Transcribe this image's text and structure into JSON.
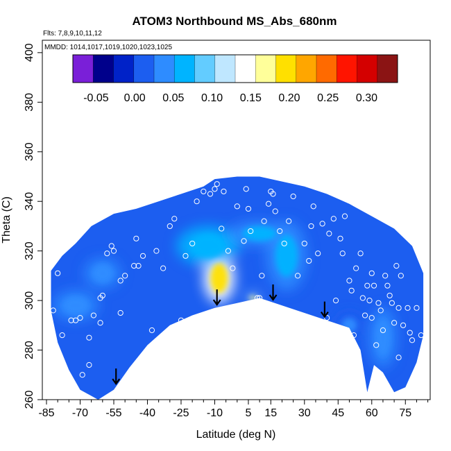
{
  "chart_data": {
    "type": "heatmap",
    "title": "ATOM3 Northbound MS_Abs_680nm",
    "flights_note": "Flts: 7,8,9,10,11,12",
    "dates_note": "MMDD: 1014,1017,1019,1020,1023,1025",
    "xlabel": "Latitude (deg N)",
    "ylabel": "Theta (C)",
    "xlim": [
      -85,
      85
    ],
    "ylim": [
      260,
      405
    ],
    "x_ticks": [
      -85,
      -70,
      -55,
      -40,
      -25,
      -10,
      5,
      15,
      30,
      45,
      60,
      75
    ],
    "y_ticks": [
      260,
      280,
      300,
      320,
      340,
      360,
      380,
      400
    ],
    "colorbar": {
      "range": [
        -0.08,
        0.34
      ],
      "ticks": [
        -0.05,
        0.0,
        0.05,
        0.1,
        0.15,
        0.2,
        0.25,
        0.3
      ],
      "tick_labels": [
        "-0.05",
        "0.00",
        "0.05",
        "0.10",
        "0.15",
        "0.20",
        "0.25",
        "0.30"
      ],
      "colors": [
        "#7a1fd8",
        "#00008b",
        "#0022c8",
        "#1c5ef0",
        "#2e8cff",
        "#00b4ff",
        "#63ccff",
        "#bfe7ff",
        "#ffffff",
        "#ffff9a",
        "#ffe000",
        "#ffa600",
        "#ff6a00",
        "#ff1400",
        "#d40000",
        "#8b1414"
      ]
    },
    "boundary": {
      "top": [
        [
          -83,
          312
        ],
        [
          -78,
          318
        ],
        [
          -72,
          323
        ],
        [
          -65,
          330
        ],
        [
          -55,
          335
        ],
        [
          -45,
          337
        ],
        [
          -35,
          340
        ],
        [
          -25,
          343
        ],
        [
          -15,
          346
        ],
        [
          -10,
          349
        ],
        [
          0,
          350
        ],
        [
          10,
          350
        ],
        [
          20,
          348
        ],
        [
          30,
          346
        ],
        [
          40,
          343
        ],
        [
          50,
          339
        ],
        [
          60,
          334
        ],
        [
          70,
          329
        ],
        [
          78,
          322
        ],
        [
          83,
          311
        ]
      ],
      "bottom": [
        [
          -83,
          296
        ],
        [
          -80,
          283
        ],
        [
          -75,
          272
        ],
        [
          -70,
          264
        ],
        [
          -62,
          260
        ],
        [
          -55,
          264
        ],
        [
          -48,
          273
        ],
        [
          -40,
          282
        ],
        [
          -30,
          290
        ],
        [
          -20,
          294
        ],
        [
          -10,
          297
        ],
        [
          0,
          299
        ],
        [
          10,
          301
        ],
        [
          20,
          298
        ],
        [
          30,
          295
        ],
        [
          40,
          292
        ],
        [
          50,
          289
        ],
        [
          55,
          280
        ],
        [
          58,
          263
        ],
        [
          61,
          274
        ],
        [
          65,
          271
        ],
        [
          70,
          263
        ],
        [
          75,
          265
        ],
        [
          80,
          275
        ],
        [
          83,
          286
        ]
      ]
    },
    "hotspots": [
      {
        "x": -8,
        "y": 309,
        "value": 0.2,
        "rx": 7,
        "ry": 10
      },
      {
        "x": 7,
        "y": 301,
        "value": 0.17,
        "rx": 3,
        "ry": 1.5
      },
      {
        "x": -13,
        "y": 322,
        "value": 0.07,
        "rx": 14,
        "ry": 8
      },
      {
        "x": 22,
        "y": 318,
        "value": 0.06,
        "rx": 9,
        "ry": 14
      },
      {
        "x": 10,
        "y": 327,
        "value": 0.06,
        "rx": 14,
        "ry": 5
      },
      {
        "x": -60,
        "y": 311,
        "value": 0.05,
        "rx": 8,
        "ry": 6
      },
      {
        "x": -72,
        "y": 298,
        "value": 0.04,
        "rx": 10,
        "ry": 6
      },
      {
        "x": 65,
        "y": 285,
        "value": 0.05,
        "rx": 6,
        "ry": 12
      },
      {
        "x": 50,
        "y": 290,
        "value": 0.03,
        "rx": 6,
        "ry": 5
      }
    ],
    "background_value": 0.0,
    "sample_points": [
      [
        -82,
        296
      ],
      [
        -80,
        311
      ],
      [
        -78,
        286
      ],
      [
        -74,
        292
      ],
      [
        -72,
        292
      ],
      [
        -70,
        293
      ],
      [
        -73,
        262
      ],
      [
        -66,
        285
      ],
      [
        -64,
        294
      ],
      [
        -61,
        291
      ],
      [
        -60,
        302
      ],
      [
        -58,
        319
      ],
      [
        -56,
        322
      ],
      [
        -55,
        320
      ],
      [
        -52,
        308
      ],
      [
        -50,
        310
      ],
      [
        -46,
        314
      ],
      [
        -45,
        325
      ],
      [
        -44,
        314
      ],
      [
        -42,
        318
      ],
      [
        -38,
        288
      ],
      [
        -36,
        320
      ],
      [
        -33,
        313
      ],
      [
        -30,
        330
      ],
      [
        -28,
        333
      ],
      [
        -25,
        292
      ],
      [
        -23,
        318
      ],
      [
        -20,
        323
      ],
      [
        -18,
        340
      ],
      [
        -15,
        344
      ],
      [
        -12,
        343
      ],
      [
        -10,
        345
      ],
      [
        -9,
        347
      ],
      [
        -7,
        329
      ],
      [
        -6,
        344
      ],
      [
        -4,
        320
      ],
      [
        -2,
        313
      ],
      [
        0,
        338
      ],
      [
        3,
        324
      ],
      [
        4,
        345
      ],
      [
        5,
        337
      ],
      [
        6,
        328
      ],
      [
        8,
        299
      ],
      [
        9,
        301
      ],
      [
        10,
        301
      ],
      [
        11,
        310
      ],
      [
        12,
        332
      ],
      [
        14,
        339
      ],
      [
        15,
        344
      ],
      [
        16,
        343
      ],
      [
        17,
        336
      ],
      [
        19,
        328
      ],
      [
        21,
        323
      ],
      [
        23,
        332
      ],
      [
        25,
        342
      ],
      [
        27,
        310
      ],
      [
        29,
        294
      ],
      [
        30,
        323
      ],
      [
        32,
        316
      ],
      [
        33,
        330
      ],
      [
        34,
        338
      ],
      [
        36,
        319
      ],
      [
        38,
        331
      ],
      [
        40,
        293
      ],
      [
        41,
        327
      ],
      [
        43,
        333
      ],
      [
        44,
        300
      ],
      [
        46,
        325
      ],
      [
        47,
        319
      ],
      [
        48,
        334
      ],
      [
        50,
        308
      ],
      [
        51,
        304
      ],
      [
        52,
        286
      ],
      [
        53,
        313
      ],
      [
        55,
        319
      ],
      [
        56,
        301
      ],
      [
        57,
        294
      ],
      [
        58,
        306
      ],
      [
        59,
        300
      ],
      [
        60,
        293
      ],
      [
        60,
        311
      ],
      [
        61,
        306
      ],
      [
        62,
        282
      ],
      [
        63,
        299
      ],
      [
        64,
        296
      ],
      [
        65,
        288
      ],
      [
        66,
        310
      ],
      [
        67,
        306
      ],
      [
        68,
        302
      ],
      [
        69,
        299
      ],
      [
        70,
        291
      ],
      [
        71,
        314
      ],
      [
        72,
        297
      ],
      [
        72,
        277
      ],
      [
        73,
        310
      ],
      [
        74,
        290
      ],
      [
        76,
        297
      ],
      [
        77,
        287
      ],
      [
        78,
        284
      ],
      [
        80,
        297
      ],
      [
        82,
        286
      ],
      [
        -69,
        270
      ],
      [
        -66,
        274
      ],
      [
        -61,
        301
      ],
      [
        -52,
        295
      ]
    ],
    "arrows_x": [
      -54,
      -9,
      16,
      39
    ],
    "grid": false,
    "legend": "colorbar-top-inside"
  }
}
